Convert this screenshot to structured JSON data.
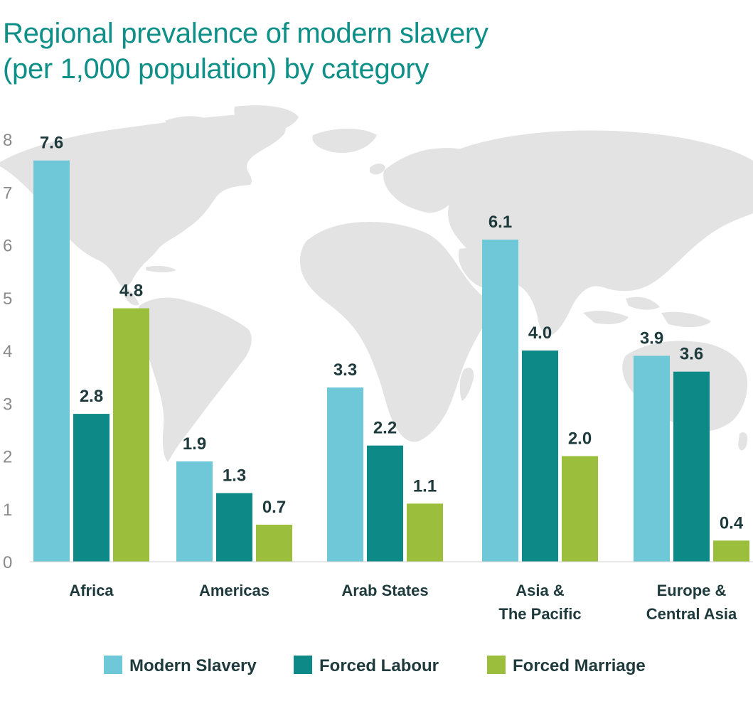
{
  "colors": {
    "modern_slavery": "#6ec8d8",
    "forced_labour": "#0d8a87",
    "forced_marriage": "#9bbf3c",
    "title": "#0e8f87",
    "map": "#e3e3e3",
    "axis": "#8a8a8a",
    "text": "#1e3a3c"
  },
  "chart_data": {
    "type": "bar",
    "title_line1": "Regional prevalence of modern slavery",
    "title_line2": "(per 1,000 population) by category",
    "categories": [
      [
        "Africa"
      ],
      [
        "Americas"
      ],
      [
        "Arab States"
      ],
      [
        "Asia &",
        "The Pacific"
      ],
      [
        "Europe &",
        "Central Asia"
      ]
    ],
    "series": [
      {
        "name": "Modern Slavery",
        "values": [
          7.6,
          1.9,
          3.3,
          6.1,
          3.9
        ],
        "labels": [
          "7.6",
          "1.9",
          "3.3",
          "6.1",
          "3.9"
        ]
      },
      {
        "name": "Forced Labour",
        "values": [
          2.8,
          1.3,
          2.2,
          4.0,
          3.6
        ],
        "labels": [
          "2.8",
          "1.3",
          "2.2",
          "4.0",
          "3.6"
        ]
      },
      {
        "name": "Forced Marriage",
        "values": [
          4.8,
          0.7,
          1.1,
          2.0,
          0.4
        ],
        "labels": [
          "4.8",
          "0.7",
          "1.1",
          "2.0",
          "0.4"
        ]
      }
    ],
    "yticks": [
      "0",
      "1",
      "2",
      "3",
      "4",
      "5",
      "6",
      "7",
      "8"
    ],
    "ylim": [
      0,
      8
    ],
    "grid": false,
    "legend": "bottom",
    "background": "world map"
  }
}
